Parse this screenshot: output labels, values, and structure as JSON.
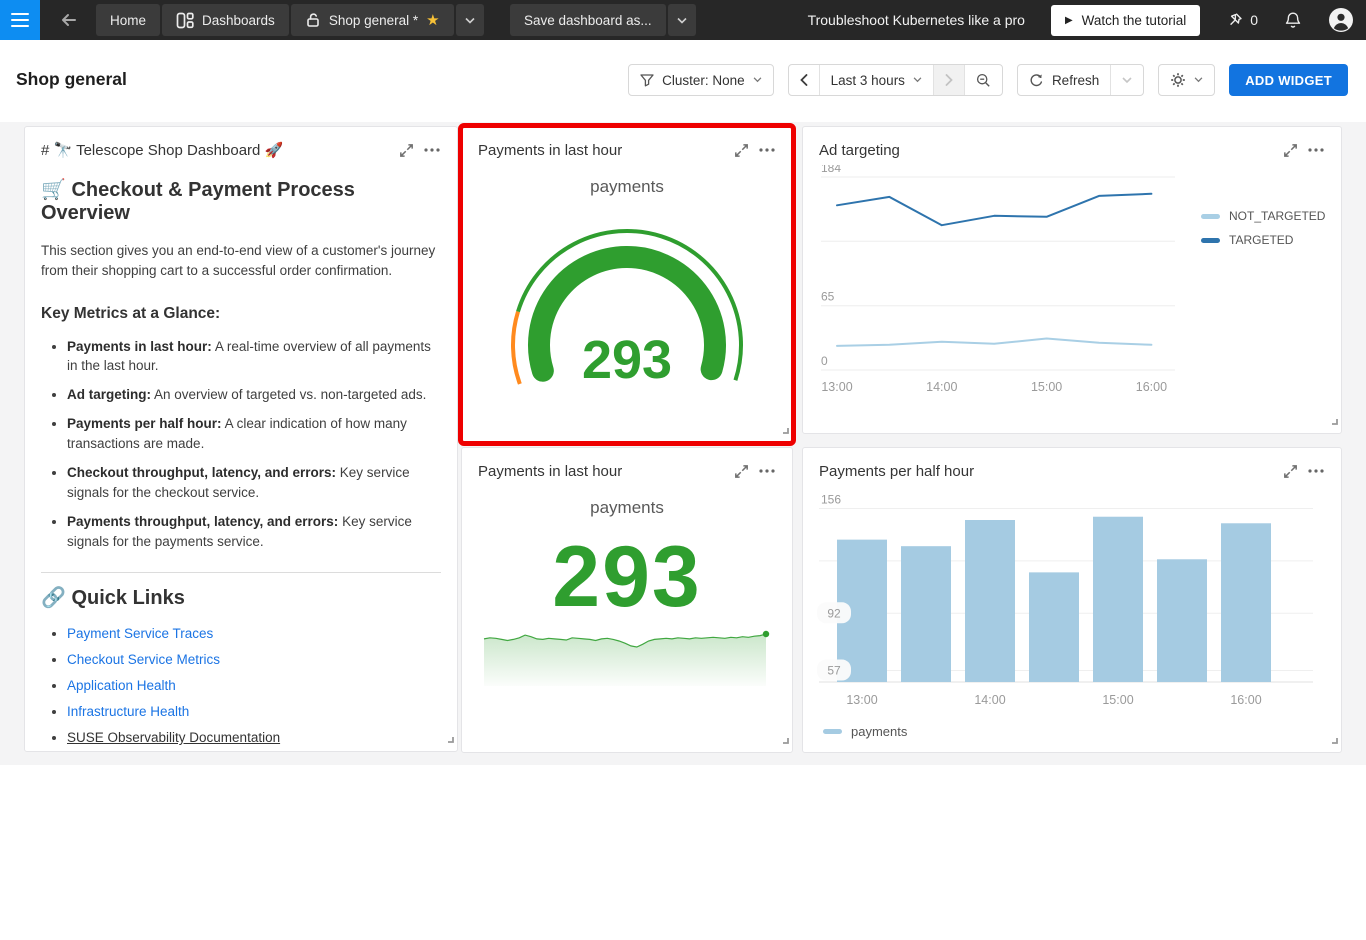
{
  "topnav": {
    "home": "Home",
    "dashboards": "Dashboards",
    "current_tab": "Shop general *",
    "save_as": "Save dashboard as...",
    "promo": "Troubleshoot Kubernetes like a pro",
    "watch_tutorial": "Watch the tutorial",
    "pin_count": "0"
  },
  "icons": {
    "star": "★",
    "play": "▶"
  },
  "header": {
    "title": "Shop general",
    "cluster_filter": "Cluster: None",
    "time_range": "Last 3 hours",
    "refresh": "Refresh",
    "add_widget": "ADD WIDGET"
  },
  "markdown_widget": {
    "title": "# 🔭 Telescope Shop Dashboard 🚀",
    "heading": "🛒 Checkout & Payment Process Overview",
    "intro": "This section gives you an end-to-end view of a customer's journey from their shopping cart to a successful order confirmation.",
    "metrics_heading": "Key Metrics at a Glance:",
    "metrics": [
      {
        "label": "Payments in last hour:",
        "text": "A real-time overview of all payments in the last hour."
      },
      {
        "label": "Ad targeting:",
        "text": "An overview of targeted vs. non-targeted ads."
      },
      {
        "label": "Payments per half hour:",
        "text": "A clear indication of how many transactions are made."
      },
      {
        "label": "Checkout throughput, latency, and errors:",
        "text": "Key service signals for the checkout service."
      },
      {
        "label": "Payments throughput, latency, and errors:",
        "text": "Key service signals for the payments service."
      }
    ],
    "links_heading": "🔗 Quick Links",
    "links": [
      {
        "label": "Payment Service Traces"
      },
      {
        "label": "Checkout Service Metrics"
      },
      {
        "label": "Application Health"
      },
      {
        "label": "Infrastructure Health"
      },
      {
        "label": "SUSE Observability Documentation"
      }
    ]
  },
  "widgets": {
    "gauge": {
      "title": "Payments in last hour"
    },
    "ad": {
      "title": "Ad targeting"
    },
    "number": {
      "title": "Payments in last hour"
    },
    "bars": {
      "title": "Payments per half hour"
    }
  },
  "colors": {
    "accent_blue": "#1274e0",
    "menu_blue": "#0d8df2",
    "gauge_green": "#2f9e2f",
    "gauge_orange": "#ff8a1e",
    "line_dark_blue": "#2e74ad",
    "line_light_blue": "#a9cfe5",
    "bar_blue": "#a5cbe2",
    "highlight_red": "#ee0000"
  },
  "chart_data": {
    "gauge": {
      "type": "gauge",
      "metric_label": "payments",
      "value": 293,
      "min": 0,
      "max": 300,
      "low_band_fraction": 0.17,
      "arc_color": "#2f9e2f",
      "low_band_color": "#ff8a1e"
    },
    "number": {
      "type": "number-sparkline",
      "metric_label": "payments",
      "value": 293,
      "spark_color": "#2f9e2f",
      "spark": [
        284,
        286,
        285,
        283,
        281,
        283,
        286,
        291,
        288,
        284,
        283,
        285,
        284,
        283,
        282,
        286,
        285,
        284,
        283,
        281,
        284,
        285,
        283,
        280,
        276,
        271,
        269,
        274,
        280,
        283,
        284,
        285,
        284,
        286,
        285,
        284,
        286,
        285,
        286,
        287,
        286,
        285,
        287,
        286,
        288,
        287,
        289,
        290,
        293
      ]
    },
    "ad_targeting": {
      "type": "line",
      "x": [
        "13:00",
        "13:30",
        "14:00",
        "14:30",
        "15:00",
        "15:30",
        "16:00"
      ],
      "x_tick_labels": [
        "13:00",
        "14:00",
        "15:00",
        "16:00"
      ],
      "ylim": [
        0,
        195
      ],
      "yticks": [
        184,
        65,
        0
      ],
      "legend_position": "right",
      "series": [
        {
          "name": "NOT_TARGETED",
          "color": "#a9cfe5",
          "values": [
            23,
            24,
            27,
            25,
            30,
            26,
            24
          ]
        },
        {
          "name": "TARGETED",
          "color": "#2e74ad",
          "values": [
            157,
            165,
            138,
            147,
            146,
            166,
            168
          ]
        }
      ]
    },
    "payments_half_hour": {
      "type": "bar",
      "categories": [
        "13:00",
        "13:30",
        "14:00",
        "14:30",
        "15:00",
        "15:30",
        "16:00"
      ],
      "x_tick_labels": [
        "13:00",
        "14:00",
        "15:00",
        "16:00"
      ],
      "values": [
        137,
        133,
        149,
        117,
        151,
        125,
        147
      ],
      "ylim": [
        50,
        160
      ],
      "yticks": [
        156,
        124,
        92,
        57
      ],
      "ytick_labels_shown": [
        "156",
        "92",
        "57"
      ],
      "bar_color": "#a5cbe2",
      "legend": "payments"
    }
  }
}
